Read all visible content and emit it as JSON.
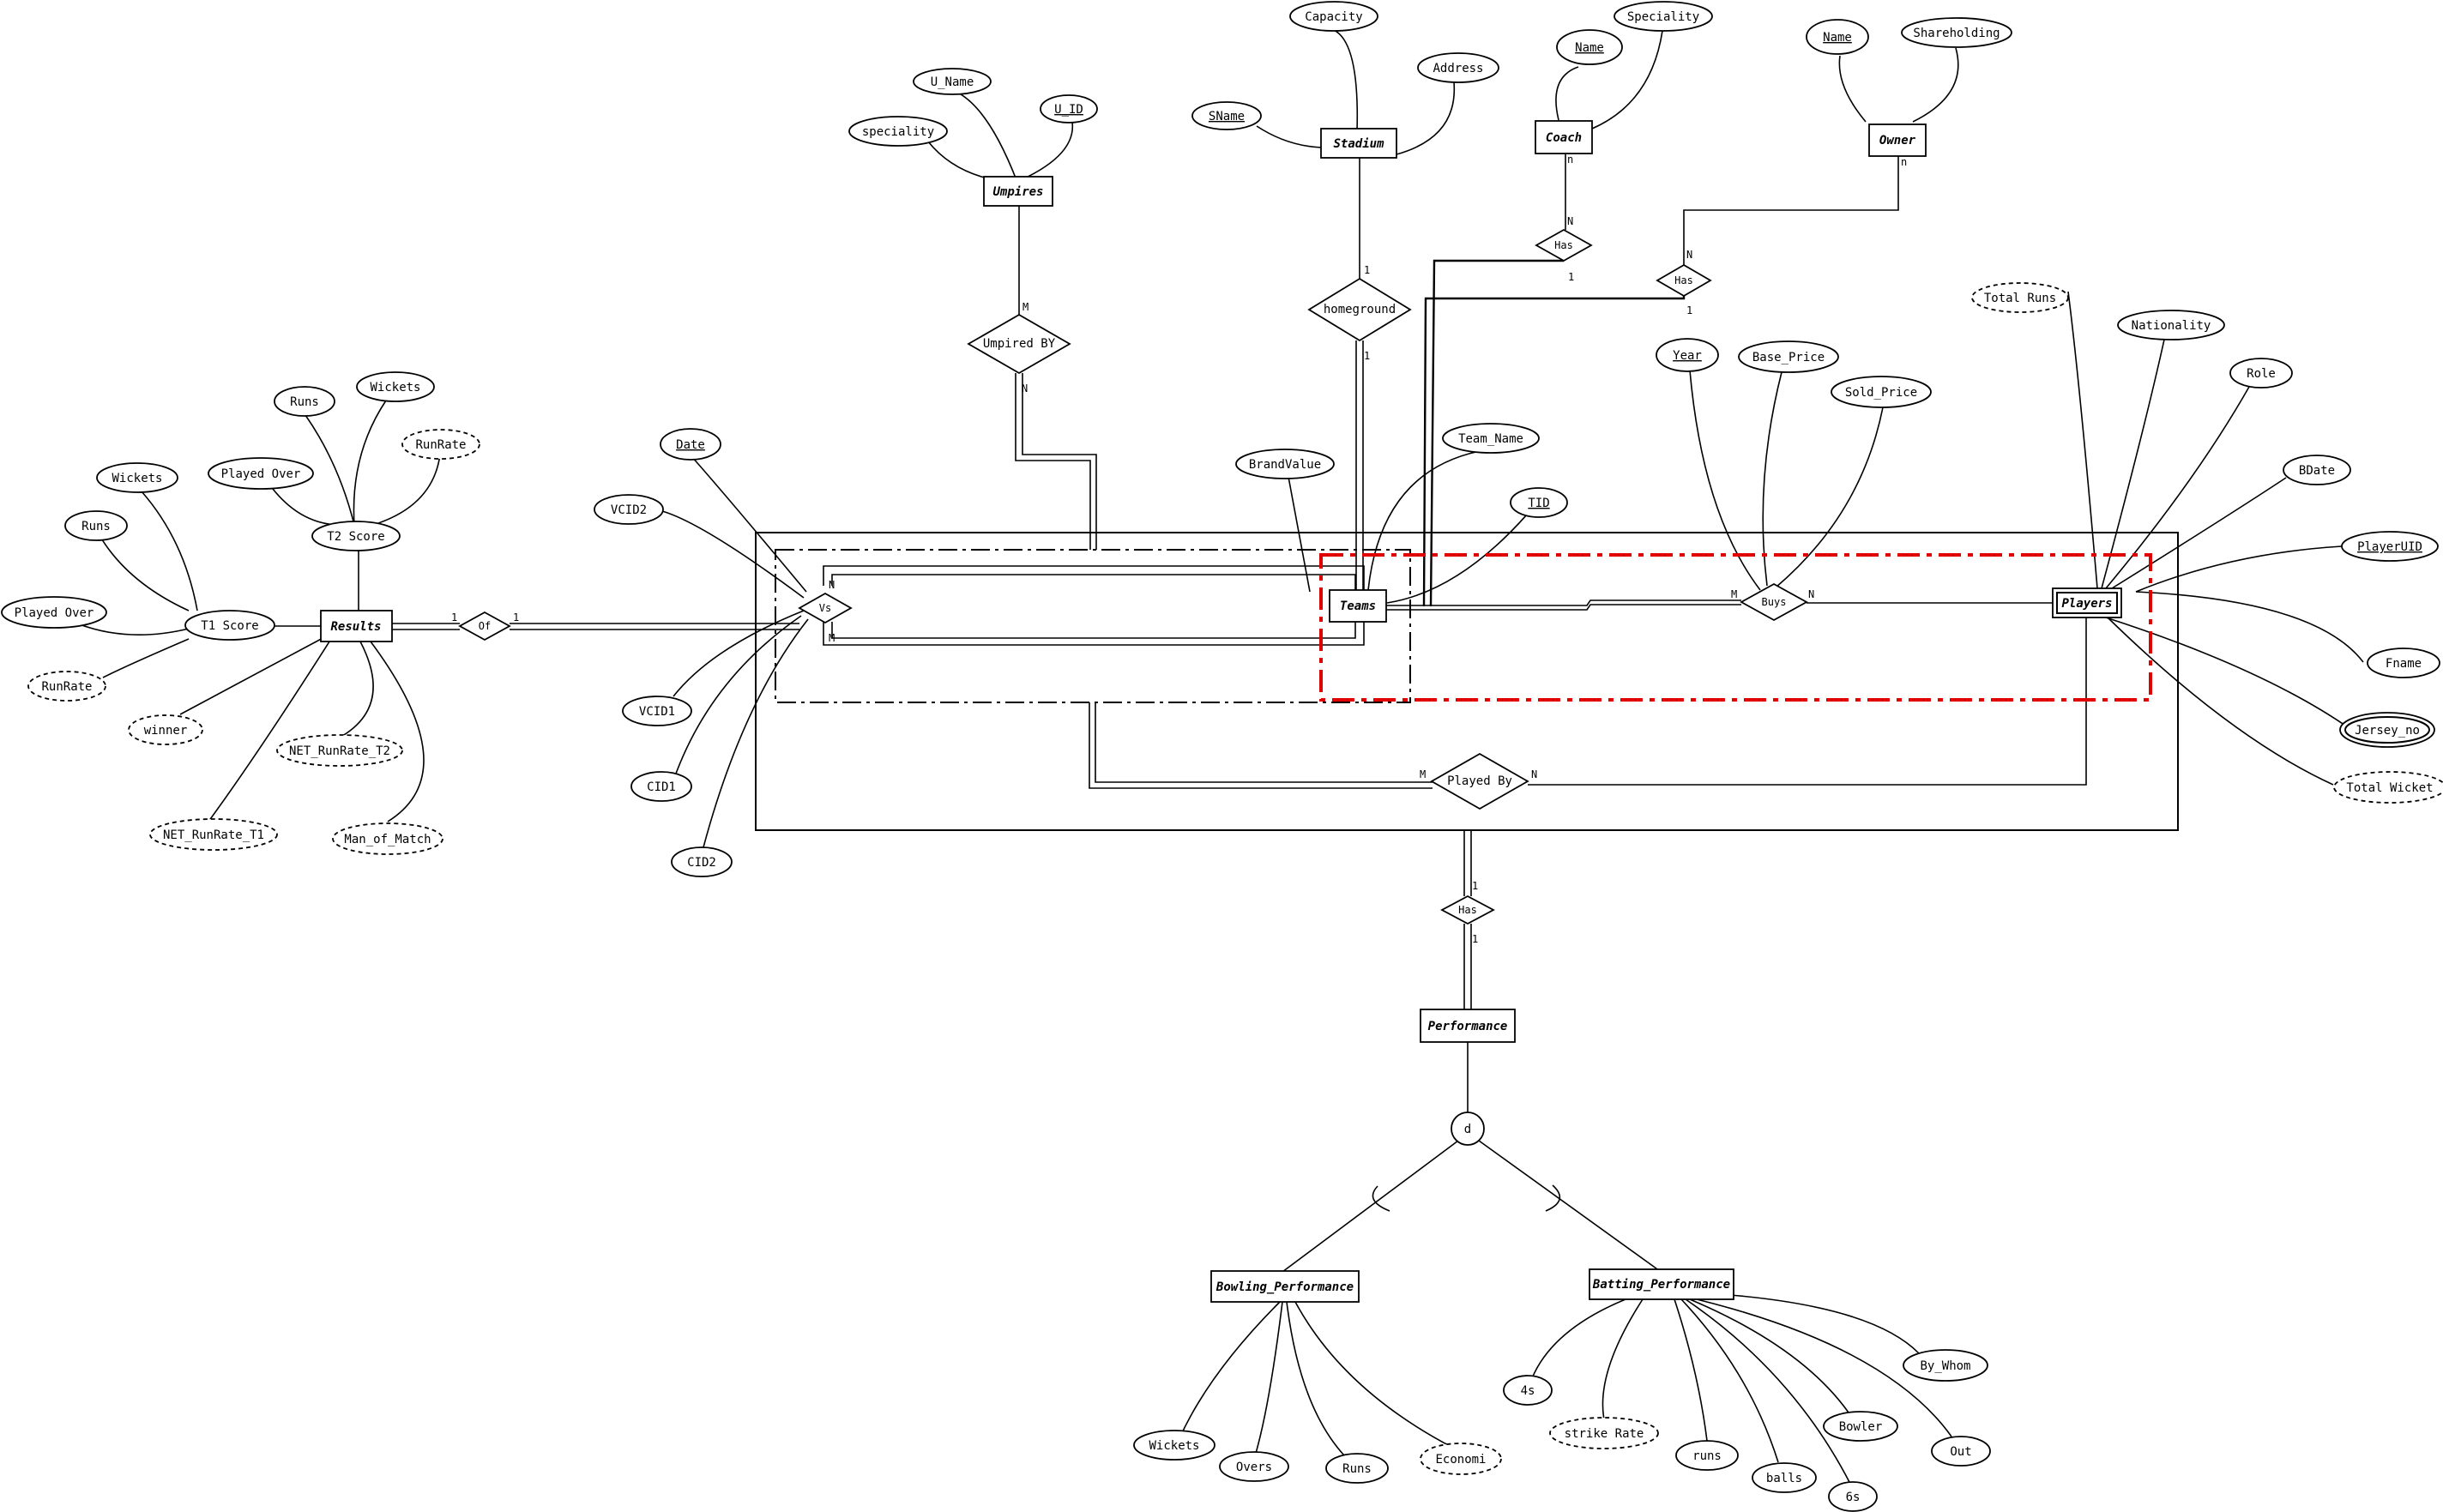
{
  "entities": {
    "umpires": "Umpires",
    "stadium": "Stadium",
    "coach": "Coach",
    "owner": "Owner",
    "teams": "Teams",
    "players": "Players",
    "results": "Results",
    "performance": "Performance",
    "bowling": "Bowling_Performance",
    "batting": "Batting_Performance"
  },
  "relationships": {
    "umpired_by": "Umpired BY",
    "homeground": "homeground",
    "coach_has": "Has",
    "owner_has": "Has",
    "buys": "Buys",
    "vs": "Vs",
    "of": "Of",
    "played_by": "Played By",
    "perf_has": "Has",
    "disjoint": "d"
  },
  "attributes": {
    "u_name": "U_Name",
    "u_id": "U_ID",
    "u_speciality": "speciality",
    "capacity": "Capacity",
    "address": "Address",
    "sname": "SName",
    "coach_name": "Name",
    "coach_speciality": "Speciality",
    "owner_name": "Name",
    "shareholding": "Shareholding",
    "total_runs": "Total Runs",
    "nationality": "Nationality",
    "role": "Role",
    "bdate": "BDate",
    "playeruid": "PlayerUID",
    "fname": "Fname",
    "jersey_no": "Jersey_no",
    "total_wicket": "Total Wicket",
    "year": "Year",
    "base_price": "Base_Price",
    "sold_price": "Sold_Price",
    "team_name": "Team_Name",
    "tid": "TID",
    "brandvalue": "BrandValue",
    "date": "Date",
    "vcid2": "VCID2",
    "vcid1": "VCID1",
    "cid1": "CID1",
    "cid2": "CID2",
    "t2_runs": "Runs",
    "t2_wickets": "Wickets",
    "t2_played_over": "Played Over",
    "t2_runrate": "RunRate",
    "t2_score": "T2 Score",
    "t1_wickets": "Wickets",
    "t1_runs": "Runs",
    "t1_played_over": "Played Over",
    "t1_score": "T1 Score",
    "t1_runrate": "RunRate",
    "winner": "winner",
    "net_rr_t2": "NET_RunRate_T2",
    "net_rr_t1": "NET_RunRate_T1",
    "man_of_match": "Man_of_Match",
    "bw_wickets": "Wickets",
    "bw_overs": "Overs",
    "bw_runs": "Runs",
    "bw_economi": "Economi",
    "bt_4s": "4s",
    "bt_strike_rate": "strike Rate",
    "bt_runs": "runs",
    "bt_balls": "balls",
    "bt_6s": "6s",
    "bt_bowler": "Bowler",
    "bt_out": "Out",
    "bt_by_whom": "By_Whom"
  },
  "cardinalities": {
    "umpired_m": "M",
    "umpired_n": "N",
    "home_1a": "1",
    "home_1b": "1",
    "coach_n": "n",
    "coach_N": "N",
    "coach_1": "1",
    "owner_n": "n",
    "owner_N": "N",
    "owner_1": "1",
    "buys_m": "M",
    "buys_n": "N",
    "vs_n": "N",
    "vs_m": "M",
    "of_1a": "1",
    "of_1b": "1",
    "played_m": "M",
    "played_n": "N",
    "perf_1a": "1",
    "perf_1b": "1"
  },
  "colors": {
    "line": "#000000",
    "highlight": "#e00000",
    "background": "#ffffff"
  }
}
